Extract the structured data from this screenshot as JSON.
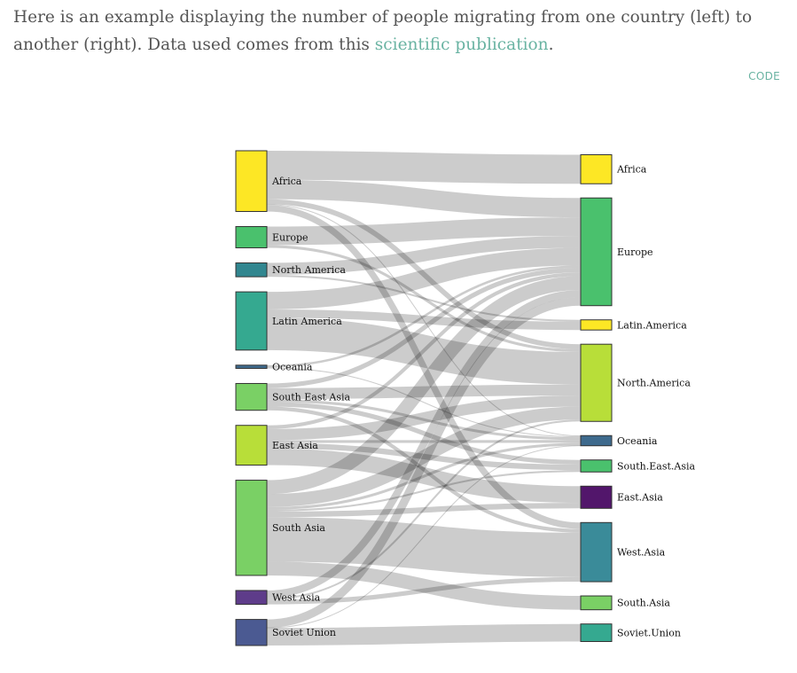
{
  "intro": {
    "text_before": "Here is an example displaying the number of people migrating from one country (left) to another (right). Data used comes from this ",
    "link_text": "scientific publication",
    "text_after": "."
  },
  "code_button": "CODE",
  "chart_data": {
    "type": "sankey",
    "title": "",
    "link_color": "#cccccc",
    "sources": [
      {
        "name": "Africa",
        "color": "#fde725"
      },
      {
        "name": "Europe",
        "color": "#4ac16d"
      },
      {
        "name": "North America",
        "color": "#31868f"
      },
      {
        "name": "Latin America",
        "color": "#35a990"
      },
      {
        "name": "Oceania",
        "color": "#3e6a8d"
      },
      {
        "name": "South East Asia",
        "color": "#7ad065"
      },
      {
        "name": "East Asia",
        "color": "#b8de39"
      },
      {
        "name": "South Asia",
        "color": "#7ad065"
      },
      {
        "name": "West Asia",
        "color": "#5e3c8a"
      },
      {
        "name": "Soviet Union",
        "color": "#4b5a92"
      }
    ],
    "targets": [
      {
        "name": "Africa",
        "color": "#fde725"
      },
      {
        "name": "Europe",
        "color": "#4ac16d"
      },
      {
        "name": "Latin.America",
        "color": "#fde725"
      },
      {
        "name": "North.America",
        "color": "#b8de39"
      },
      {
        "name": "Oceania",
        "color": "#3e6a8d"
      },
      {
        "name": "South.East.Asia",
        "color": "#4ac16d"
      },
      {
        "name": "East.Asia",
        "color": "#52166b"
      },
      {
        "name": "West.Asia",
        "color": "#3a8b99"
      },
      {
        "name": "South.Asia",
        "color": "#7ad065"
      },
      {
        "name": "Soviet.Union",
        "color": "#35a990"
      }
    ],
    "links": [
      {
        "source": "Africa",
        "target": "Africa",
        "value": 3.14
      },
      {
        "source": "Africa",
        "target": "Europe",
        "value": 2.1
      },
      {
        "source": "Africa",
        "target": "North.America",
        "value": 0.55
      },
      {
        "source": "Africa",
        "target": "Oceania",
        "value": 0.08
      },
      {
        "source": "Africa",
        "target": "West.Asia",
        "value": 0.7
      },
      {
        "source": "Europe",
        "target": "Europe",
        "value": 2.0
      },
      {
        "source": "Europe",
        "target": "North.America",
        "value": 0.3
      },
      {
        "source": "North America",
        "target": "Europe",
        "value": 1.3
      },
      {
        "source": "North America",
        "target": "Latin.America",
        "value": 0.2
      },
      {
        "source": "Latin America",
        "target": "Europe",
        "value": 1.9
      },
      {
        "source": "Latin America",
        "target": "Latin.America",
        "value": 0.9
      },
      {
        "source": "Latin America",
        "target": "North.America",
        "value": 3.5
      },
      {
        "source": "Oceania",
        "target": "Europe",
        "value": 0.25
      },
      {
        "source": "Oceania",
        "target": "Oceania",
        "value": 0.1
      },
      {
        "source": "South East Asia",
        "target": "Europe",
        "value": 0.5
      },
      {
        "source": "South East Asia",
        "target": "North.America",
        "value": 1.2
      },
      {
        "source": "South East Asia",
        "target": "Oceania",
        "value": 0.3
      },
      {
        "source": "South East Asia",
        "target": "South.East.Asia",
        "value": 0.5
      },
      {
        "source": "South East Asia",
        "target": "West.Asia",
        "value": 0.4
      },
      {
        "source": "East Asia",
        "target": "Europe",
        "value": 0.4
      },
      {
        "source": "East Asia",
        "target": "North.America",
        "value": 1.2
      },
      {
        "source": "East Asia",
        "target": "Oceania",
        "value": 0.3
      },
      {
        "source": "East Asia",
        "target": "South.East.Asia",
        "value": 0.6
      },
      {
        "source": "East Asia",
        "target": "East.Asia",
        "value": 1.8
      },
      {
        "source": "South Asia",
        "target": "Europe",
        "value": 1.5
      },
      {
        "source": "South Asia",
        "target": "North.America",
        "value": 1.4
      },
      {
        "source": "South Asia",
        "target": "Oceania",
        "value": 0.3
      },
      {
        "source": "South Asia",
        "target": "South.East.Asia",
        "value": 0.2
      },
      {
        "source": "South Asia",
        "target": "East.Asia",
        "value": 0.6
      },
      {
        "source": "South Asia",
        "target": "West.Asia",
        "value": 4.8
      },
      {
        "source": "South Asia",
        "target": "South.Asia",
        "value": 1.5
      },
      {
        "source": "West Asia",
        "target": "Europe",
        "value": 0.8
      },
      {
        "source": "West Asia",
        "target": "North.America",
        "value": 0.2
      },
      {
        "source": "West Asia",
        "target": "West.Asia",
        "value": 0.5
      },
      {
        "source": "Soviet Union",
        "target": "Europe",
        "value": 0.9
      },
      {
        "source": "Soviet Union",
        "target": "Oceania",
        "value": 0.02
      },
      {
        "source": "Soviet Union",
        "target": "Soviet.Union",
        "value": 1.9
      }
    ]
  }
}
